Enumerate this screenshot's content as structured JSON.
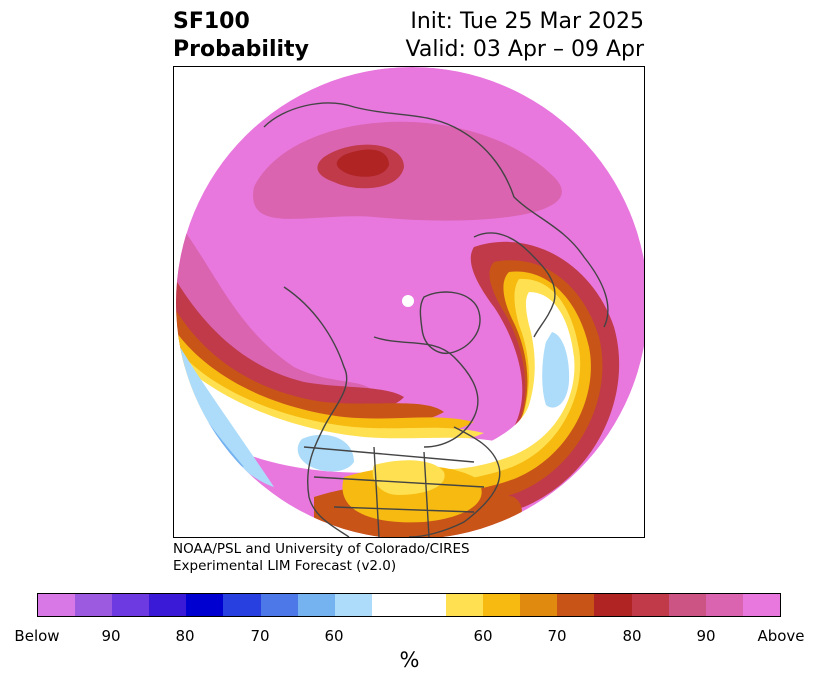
{
  "title": {
    "product": "SF100",
    "subtitle": "Probability",
    "init": "Init: Tue 25 Mar 2025",
    "valid": "Valid: 03 Apr – 09 Apr"
  },
  "credits": {
    "line1": "NOAA/PSL and University of Colorado/CIRES",
    "line2": "Experimental LIM Forecast (v2.0)"
  },
  "colorbar": {
    "unit": "%",
    "colors": [
      "#d878e6",
      "#9c5ae0",
      "#6c3ae0",
      "#3a1ad6",
      "#0000d0",
      "#2840e0",
      "#4d78e8",
      "#74b2f0",
      "#acdcfa",
      "#ffffff",
      "#ffffff",
      "#ffe050",
      "#f6ba10",
      "#e08a10",
      "#c85418",
      "#b02424",
      "#c03a4a",
      "#cc5484",
      "#da64b0",
      "#e878de"
    ],
    "tick_labels": [
      "Below",
      "90",
      "80",
      "70",
      "60",
      "60",
      "70",
      "80",
      "90",
      "Above"
    ]
  },
  "map": {
    "palette": {
      "above_max": "#e878de",
      "above_90": "#da64b0",
      "above_85": "#cc5484",
      "above_80": "#c03a4a",
      "above_75": "#b02424",
      "above_70": "#c85418",
      "above_65": "#e08a10",
      "above_60": "#f6ba10",
      "above_55": "#ffe050",
      "near_normal": "#ffffff",
      "below_55": "#acdcfa",
      "below_60": "#74b2f0",
      "coast": "#444444"
    }
  }
}
